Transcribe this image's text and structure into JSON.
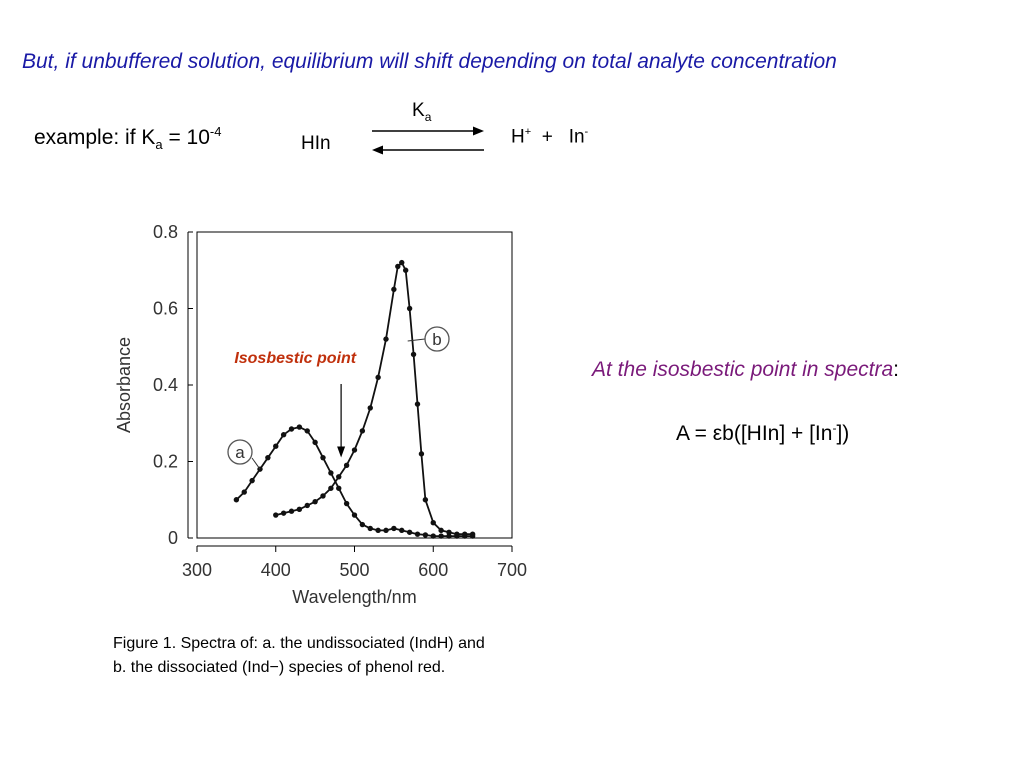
{
  "slide": {
    "headline": "But, if unbuffered solution, equilibrium will shift depending on total analyte concentration",
    "example": {
      "prefix": "example:  if K",
      "k_sub": "a",
      "equals": " = 10",
      "exponent": "-4"
    },
    "equilibrium": {
      "reactant": "HIn",
      "constant": "K",
      "constant_sub": "a",
      "product1": "H",
      "product1_sup": "+",
      "plus": "+",
      "product2": "In",
      "product2_sup": "-"
    },
    "isosbestic_heading": {
      "italic": "At the isosbestic point in spectra",
      "colon": ":"
    },
    "formula": {
      "left": "A = εb([HIn] + [In",
      "sup": "-",
      "right": "])"
    },
    "caption": {
      "line1": "Figure 1. Spectra of: a. the undissociated (IndH) and",
      "line2": "b. the dissociated (Ind−) species of phenol red."
    },
    "colors": {
      "headline": "#1a1aa6",
      "italic_heading": "#7a1a7a",
      "annotation": "#c0300c"
    }
  },
  "chart_data": {
    "type": "line",
    "xlabel": "Wavelength/nm",
    "ylabel": "Absorbance",
    "xlim": [
      300,
      700
    ],
    "ylim": [
      0,
      0.8
    ],
    "xticks": [
      300,
      400,
      500,
      600,
      700
    ],
    "yticks": [
      0,
      0.2,
      0.4,
      0.6,
      0.8
    ],
    "ytick_labels": [
      "0",
      "0.2",
      "0.4",
      "0.6",
      "0.8"
    ],
    "annotation": {
      "text": "Isosbestic point",
      "wavelength": 483,
      "absorbance": 0.2
    },
    "series": [
      {
        "name": "a",
        "x": [
          350,
          360,
          370,
          380,
          390,
          400,
          410,
          420,
          430,
          440,
          450,
          460,
          470,
          480,
          490,
          500,
          510,
          520,
          530,
          540,
          550,
          560,
          570,
          580,
          590,
          600,
          610,
          620,
          630,
          640,
          650
        ],
        "y": [
          0.1,
          0.12,
          0.15,
          0.18,
          0.21,
          0.24,
          0.27,
          0.285,
          0.29,
          0.28,
          0.25,
          0.21,
          0.17,
          0.13,
          0.09,
          0.06,
          0.035,
          0.025,
          0.02,
          0.02,
          0.025,
          0.02,
          0.015,
          0.01,
          0.008,
          0.005,
          0.005,
          0.005,
          0.005,
          0.005,
          0.005
        ]
      },
      {
        "name": "b",
        "x": [
          400,
          410,
          420,
          430,
          440,
          450,
          460,
          470,
          480,
          490,
          500,
          510,
          520,
          530,
          540,
          550,
          555,
          560,
          565,
          570,
          575,
          580,
          585,
          590,
          600,
          610,
          620,
          630,
          640,
          650
        ],
        "y": [
          0.06,
          0.065,
          0.07,
          0.075,
          0.085,
          0.095,
          0.11,
          0.13,
          0.16,
          0.19,
          0.23,
          0.28,
          0.34,
          0.42,
          0.52,
          0.65,
          0.71,
          0.72,
          0.7,
          0.6,
          0.48,
          0.35,
          0.22,
          0.1,
          0.04,
          0.02,
          0.015,
          0.01,
          0.01,
          0.01
        ]
      }
    ]
  }
}
